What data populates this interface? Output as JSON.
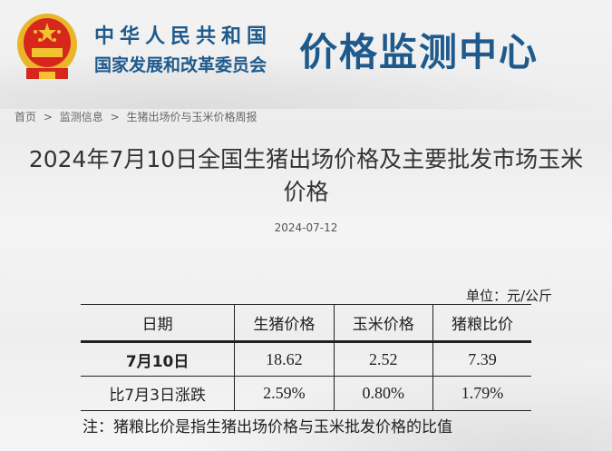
{
  "header": {
    "org_line1": "中华人民共和国",
    "org_line2": "国家发展和改革委员会",
    "center_name": "价格监测中心",
    "emblem": "national-emblem"
  },
  "breadcrumb": [
    "首页",
    "监测信息",
    "生猪出场价与玉米价格周报"
  ],
  "breadcrumb_sep": ">",
  "article": {
    "title": "2024年7月10日全国生猪出场价格及主要批发市场玉米价格",
    "date": "2024-07-12"
  },
  "table": {
    "unit": "单位：元/公斤",
    "headers": [
      "日期",
      "生猪价格",
      "玉米价格",
      "猪粮比价"
    ],
    "rows": [
      [
        "7月10日",
        "18.62",
        "2.52",
        "7.39"
      ],
      [
        "比7月3日涨跌",
        "2.59%",
        "0.80%",
        "1.79%"
      ]
    ]
  },
  "note": "注：猪粮比价是指生猪出场价格与玉米批发价格的比值",
  "colors": {
    "brand": "#1f5a8c",
    "emblem_red": "#d7261c",
    "emblem_gold": "#f2c230"
  }
}
